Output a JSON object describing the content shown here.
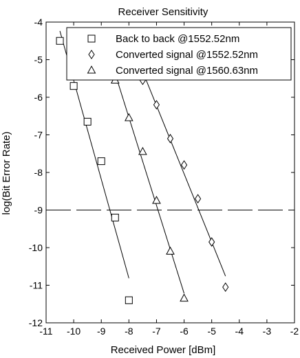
{
  "chart_data": {
    "type": "line",
    "title": "Receiver Sensitivity",
    "xlabel": "Received Power [dBm]",
    "ylabel": "log(Bit Error Rate)",
    "xlim": [
      -11,
      -2
    ],
    "ylim": [
      -12,
      -4
    ],
    "xticks": [
      -11,
      -10,
      -9,
      -8,
      -7,
      -6,
      -5,
      -4,
      -3,
      -2
    ],
    "yticks": [
      -12,
      -11,
      -10,
      -9,
      -8,
      -7,
      -6,
      -5,
      -4
    ],
    "grid": false,
    "legend_position": "top-right",
    "threshold": {
      "y": -9,
      "style": "dashed"
    },
    "series": [
      {
        "name": "Back to back @1552.52nm",
        "marker": "square",
        "x": [
          -10.5,
          -10.0,
          -9.5,
          -9.0,
          -8.5,
          -8.0
        ],
        "y": [
          -4.5,
          -5.7,
          -6.65,
          -7.7,
          -9.2,
          -11.4
        ]
      },
      {
        "name": "Converted signal @1552.52nm",
        "marker": "diamond",
        "x": [
          -7.5,
          -7.0,
          -6.5,
          -6.0,
          -5.5,
          -5.0,
          -4.5
        ],
        "y": [
          -5.55,
          -6.2,
          -7.1,
          -7.8,
          -8.7,
          -9.85,
          -11.05
        ]
      },
      {
        "name": "Converted signal @1560.63nm",
        "marker": "triangle",
        "x": [
          -8.5,
          -8.0,
          -7.5,
          -7.0,
          -6.5,
          -6.0
        ],
        "y": [
          -5.55,
          -6.55,
          -7.45,
          -8.75,
          -10.1,
          -11.35
        ]
      }
    ]
  }
}
